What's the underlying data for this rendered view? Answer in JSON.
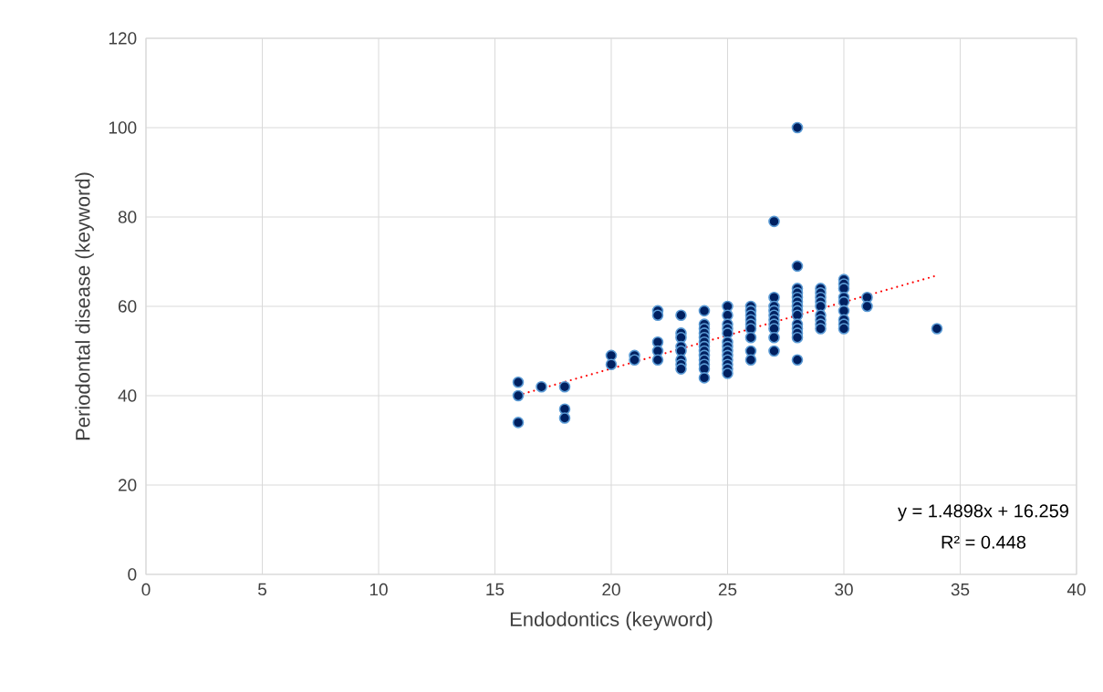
{
  "chart_data": {
    "type": "scatter",
    "xlabel": "Endodontics (keyword)",
    "ylabel": "Periodontal disease (keyword)",
    "xlim": [
      0,
      40
    ],
    "xticks": [
      0,
      5,
      10,
      15,
      20,
      25,
      30,
      35,
      40
    ],
    "ylim": [
      0,
      120
    ],
    "yticks": [
      0,
      20,
      40,
      60,
      80,
      100,
      120
    ],
    "grid": true,
    "marker": "circle",
    "series": [
      {
        "type": "scatter",
        "color": "#002060",
        "x": [
          16,
          16,
          16,
          17,
          18,
          18,
          18,
          20,
          20,
          21,
          21,
          22,
          22,
          22,
          22,
          22,
          23,
          23,
          23,
          23,
          23,
          23,
          23,
          23,
          24,
          24,
          24,
          24,
          24,
          24,
          24,
          24,
          24,
          24,
          24,
          24,
          24,
          25,
          25,
          25,
          25,
          25,
          25,
          25,
          25,
          25,
          25,
          25,
          25,
          25,
          26,
          26,
          26,
          26,
          26,
          26,
          26,
          26,
          26,
          27,
          27,
          27,
          27,
          27,
          27,
          27,
          27,
          27,
          27,
          28,
          28,
          28,
          28,
          28,
          28,
          28,
          28,
          28,
          28,
          28,
          28,
          28,
          28,
          29,
          29,
          29,
          29,
          29,
          29,
          29,
          29,
          29,
          30,
          30,
          30,
          30,
          30,
          30,
          30,
          30,
          30,
          31,
          31,
          34
        ],
        "values": [
          43,
          40,
          34,
          42,
          42,
          37,
          35,
          49,
          47,
          49,
          48,
          59,
          58,
          52,
          50,
          48,
          58,
          54,
          53,
          51,
          50,
          48,
          47,
          46,
          59,
          56,
          55,
          54,
          53,
          52,
          51,
          50,
          49,
          48,
          47,
          46,
          44,
          60,
          58,
          56,
          55,
          54,
          52,
          51,
          50,
          49,
          48,
          47,
          46,
          45,
          60,
          59,
          58,
          57,
          56,
          55,
          53,
          50,
          48,
          79,
          62,
          60,
          59,
          58,
          57,
          56,
          55,
          53,
          50,
          100,
          69,
          64,
          63,
          62,
          61,
          60,
          59,
          58,
          56,
          55,
          54,
          53,
          48,
          64,
          63,
          62,
          61,
          60,
          58,
          57,
          56,
          55,
          66,
          65,
          64,
          62,
          61,
          59,
          57,
          56,
          55,
          62,
          60,
          55
        ]
      },
      {
        "type": "line",
        "marker": "none",
        "color": "#ff0000",
        "line_style": "dotted",
        "x": [
          16,
          34
        ],
        "values": [
          40.1,
          66.9
        ]
      }
    ],
    "annotations": [
      "y = 1.4898x + 16.259",
      "R² = 0.448"
    ]
  }
}
